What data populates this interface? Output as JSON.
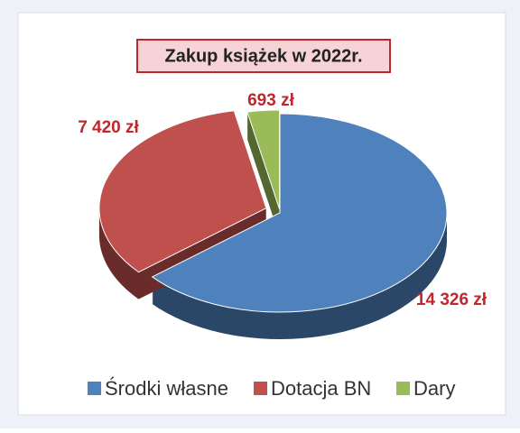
{
  "chart_data": {
    "type": "pie",
    "title": "Zakup książek w 2022r.",
    "categories": [
      "Środki własne",
      "Dotacja BN",
      "Dary"
    ],
    "values": [
      14326,
      7420,
      693
    ],
    "value_labels": [
      "14 326 zł",
      "7 420 zł",
      "693 zł"
    ],
    "colors": [
      "#4f81bd",
      "#c0504d",
      "#9bbb59"
    ],
    "legend": "bottom"
  }
}
